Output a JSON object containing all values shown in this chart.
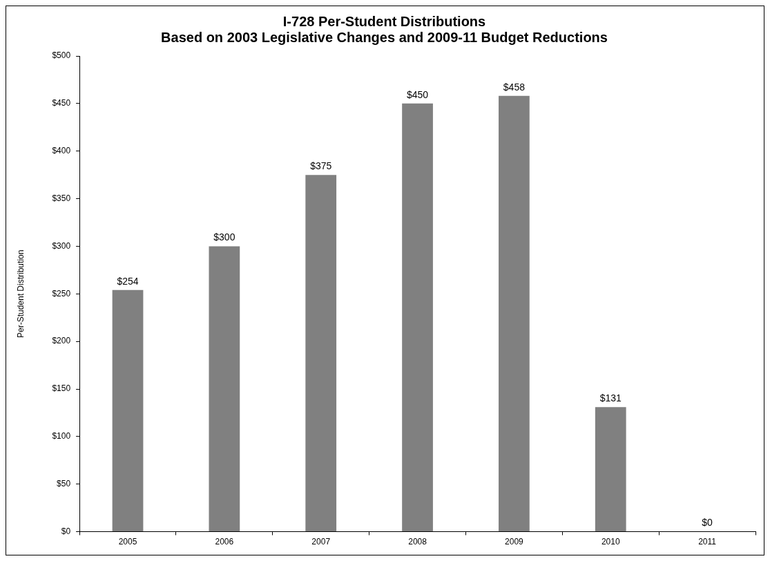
{
  "chart_data": {
    "type": "bar",
    "title": [
      "I-728 Per-Student Distributions",
      "Based on 2003 Legislative Changes and 2009-11 Budget Reductions"
    ],
    "ylabel": "Per-Student Distribution",
    "categories": [
      "2005",
      "2006",
      "2007",
      "2008",
      "2009",
      "2010",
      "2011"
    ],
    "values": [
      254,
      300,
      375,
      450,
      458,
      131,
      0
    ],
    "value_labels": [
      "$254",
      "$300",
      "$375",
      "$450",
      "$458",
      "$131",
      "$0"
    ],
    "color": "#808080",
    "ylim": [
      0,
      500
    ],
    "yticks": [
      {
        "value": 0,
        "label": "$0"
      },
      {
        "value": 50,
        "label": "$50"
      },
      {
        "value": 100,
        "label": "$100"
      },
      {
        "value": 150,
        "label": "$150"
      },
      {
        "value": 200,
        "label": "$200"
      },
      {
        "value": 250,
        "label": "$250"
      },
      {
        "value": 300,
        "label": "$300"
      },
      {
        "value": 350,
        "label": "$350"
      },
      {
        "value": 400,
        "label": "$400"
      },
      {
        "value": 450,
        "label": "$450"
      },
      {
        "value": 500,
        "label": "$500"
      }
    ],
    "grid": false,
    "legend": false
  }
}
